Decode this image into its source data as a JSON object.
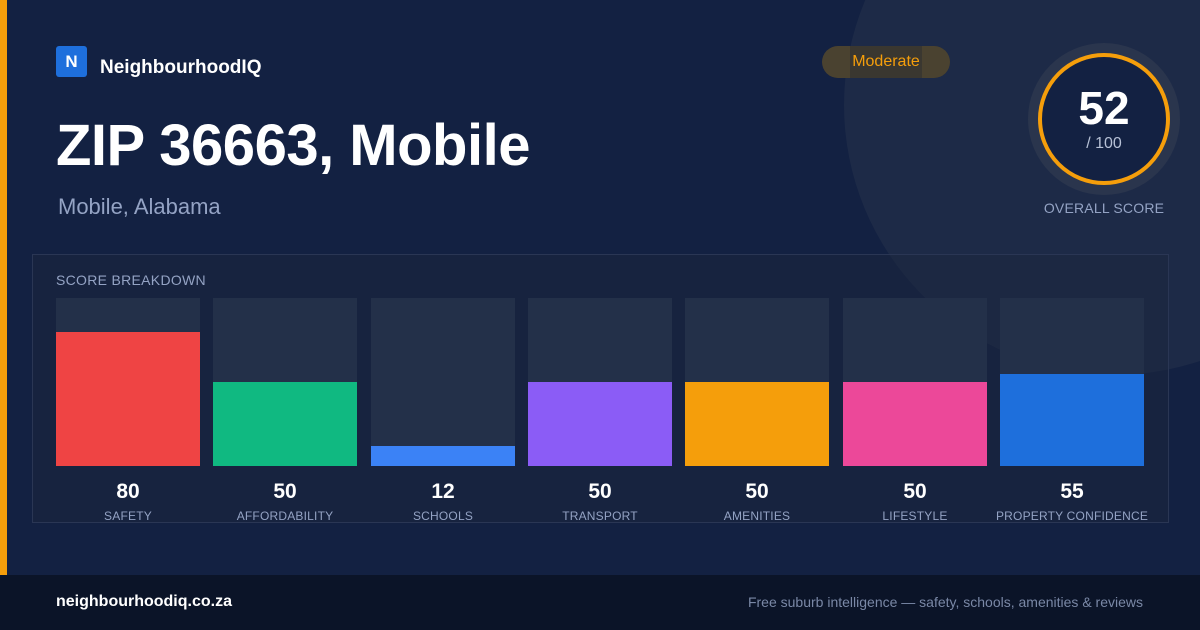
{
  "brand": {
    "logo_letter": "N",
    "name": "NeighbourhoodIQ"
  },
  "location": {
    "title": "ZIP 36663, Mobile",
    "subtitle": "Mobile, Alabama"
  },
  "rating": {
    "label": "Moderate",
    "color": "#f59e0b"
  },
  "overall": {
    "score": "52",
    "max": "/ 100",
    "label": "OVERALL SCORE",
    "fraction": 0.52
  },
  "breakdown": {
    "title": "SCORE BREAKDOWN",
    "max_value": 100,
    "items": [
      {
        "label": "SAFETY",
        "value": 80,
        "color": "#ef4444"
      },
      {
        "label": "AFFORDABILITY",
        "value": 50,
        "color": "#10b981"
      },
      {
        "label": "SCHOOLS",
        "value": 12,
        "color": "#3b82f6"
      },
      {
        "label": "TRANSPORT",
        "value": 50,
        "color": "#8b5cf6"
      },
      {
        "label": "AMENITIES",
        "value": 50,
        "color": "#f59e0b"
      },
      {
        "label": "LIFESTYLE",
        "value": 50,
        "color": "#ec4899"
      },
      {
        "label": "PROPERTY CONFIDENCE",
        "value": 55,
        "color": "#1e6fdc"
      }
    ]
  },
  "footer": {
    "domain": "neighbourhoodiq.co.za",
    "tagline": "Free suburb intelligence — safety, schools, amenities & reviews"
  }
}
